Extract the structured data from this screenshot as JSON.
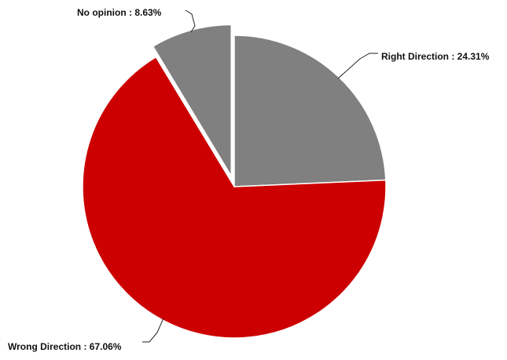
{
  "chart_data": {
    "type": "pie",
    "title": "",
    "slices": [
      {
        "name": "Right Direction",
        "value": 24.31,
        "label": "Right Direction : 24.31%",
        "color": "#808080",
        "exploded": false
      },
      {
        "name": "Wrong Direction",
        "value": 67.06,
        "label": "Wrong Direction : 67.06%",
        "color": "#cc0000",
        "exploded": false
      },
      {
        "name": "No opinion",
        "value": 8.63,
        "label": "No opinion : 8.63%",
        "color": "#808080",
        "exploded": true
      }
    ],
    "start_angle": "12 o'clock",
    "direction": "clockwise",
    "legend": "none",
    "label_style": "outside with leader lines"
  }
}
